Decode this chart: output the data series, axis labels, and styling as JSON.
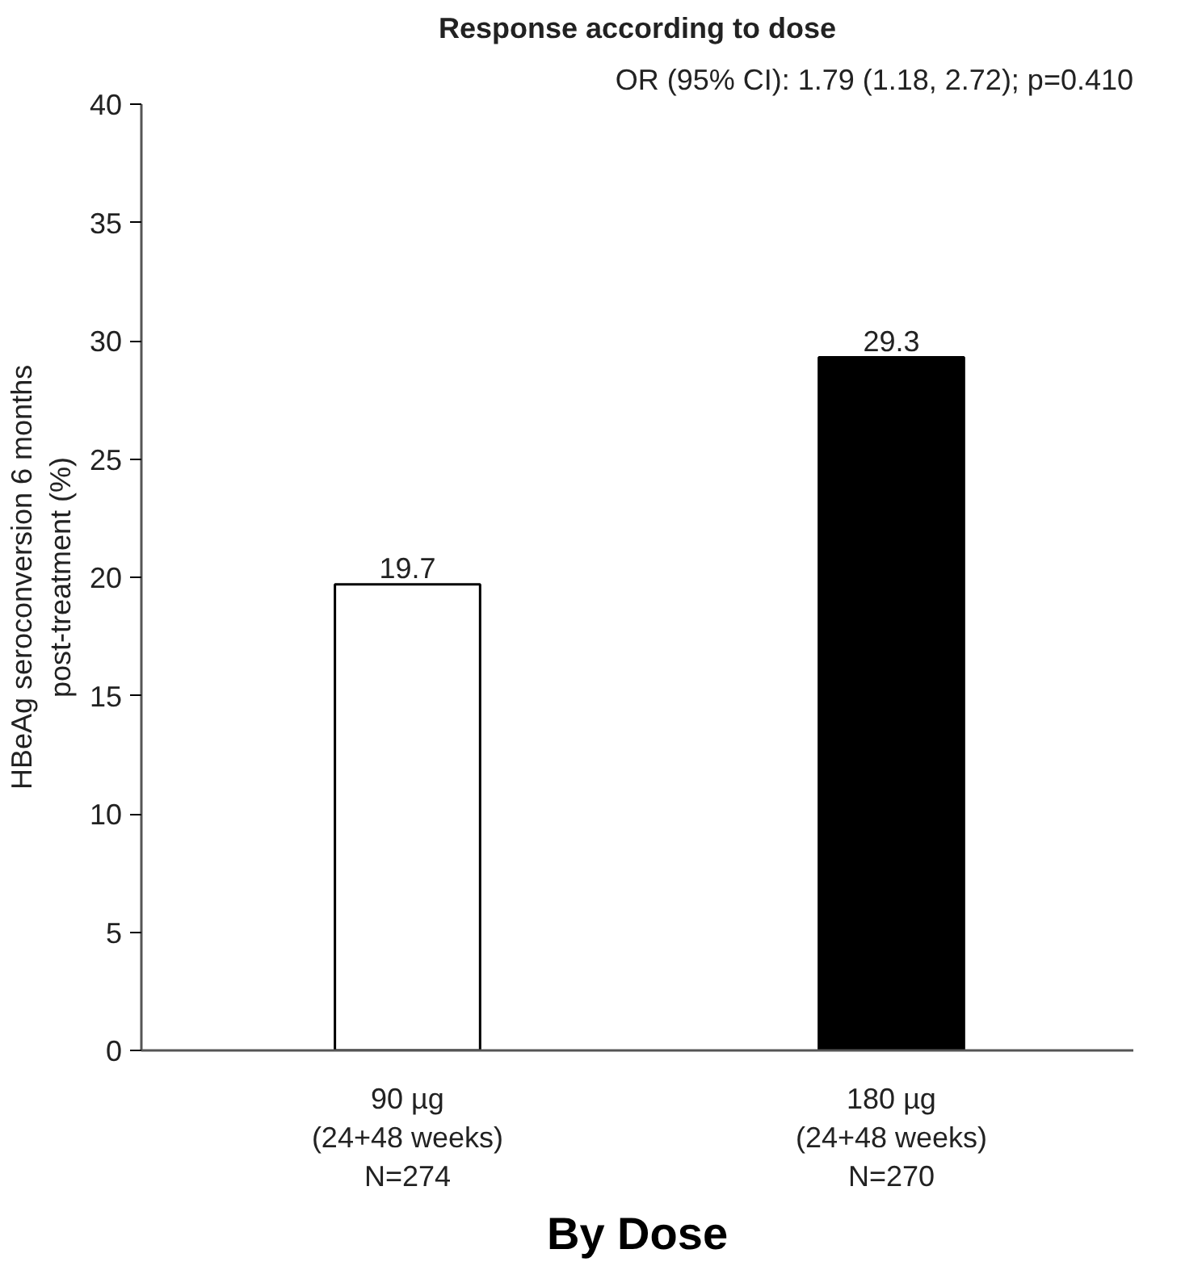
{
  "chart_data": {
    "type": "bar",
    "title": "Response according to dose",
    "subtitle": "OR (95% CI): 1.79 (1.18, 2.72); p=0.410",
    "ylabel": "HBeAg seroconversion 6 months\npost-treatment (%)",
    "categories": [
      "90 µg\n(24+48 weeks)\nN=274",
      "180 µg\n(24+48 weeks)\nN=270"
    ],
    "values": [
      19.7,
      29.3
    ],
    "colors": [
      "#ffffff",
      "#000000"
    ],
    "ylim": [
      0,
      40
    ],
    "yticks": [
      0,
      5,
      10,
      15,
      20,
      25,
      30,
      35,
      40
    ],
    "data_labels": true,
    "grid": false,
    "annotations": [
      "By Dose"
    ]
  }
}
